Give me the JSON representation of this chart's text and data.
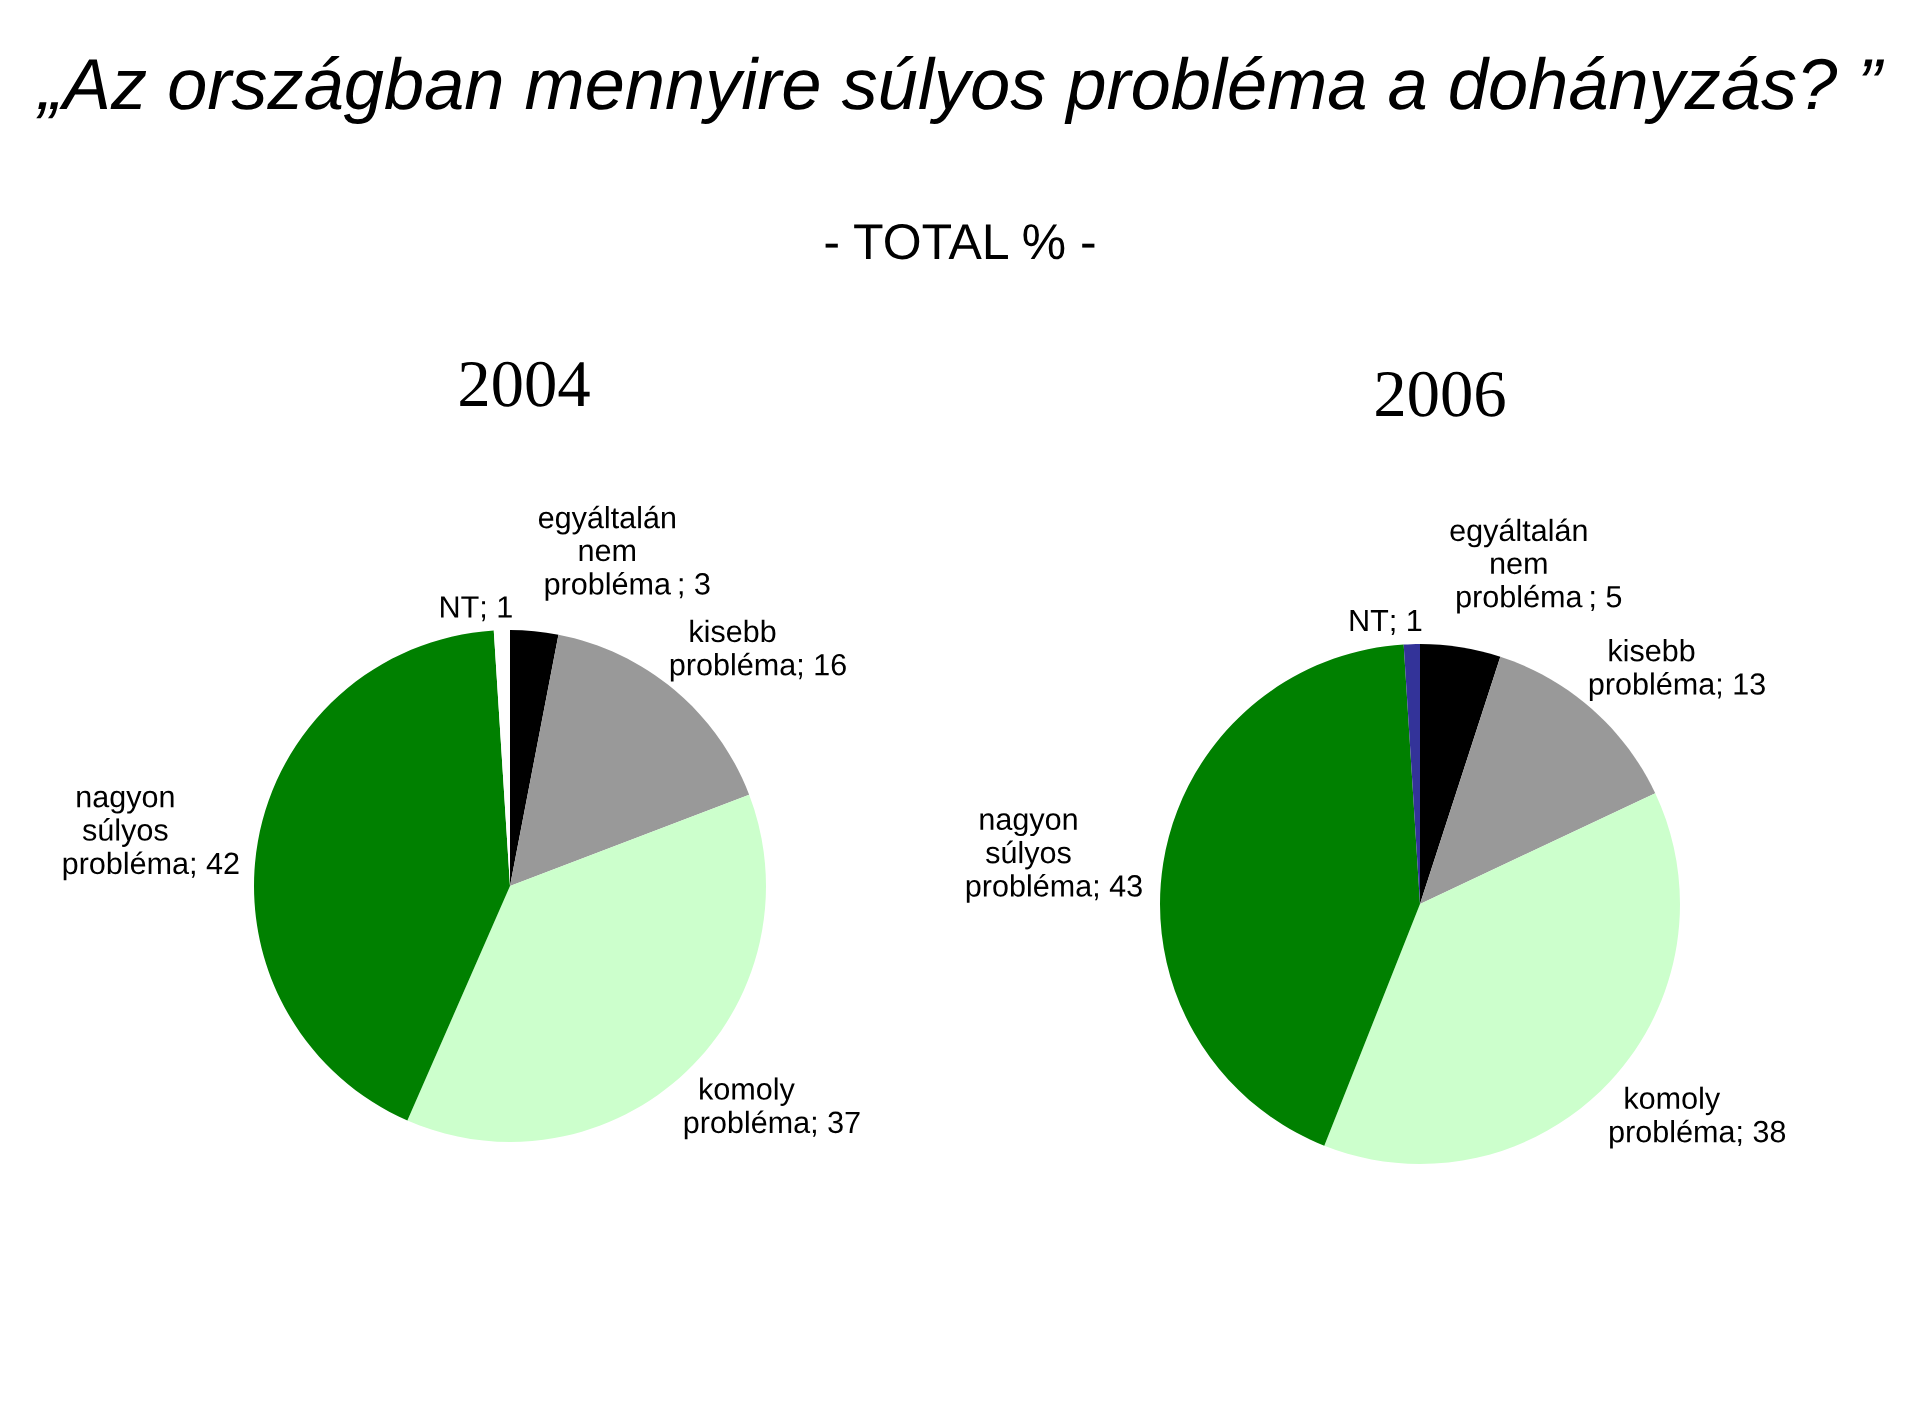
{
  "chart_data": [
    {
      "type": "pie",
      "title": "2004",
      "annotations": [
        "„Az országban mennyire súlyos probléma a dohányzás? ”",
        "- TOTAL % -"
      ],
      "categories": [
        "egyáltalán nem probléma",
        "kisebb probléma",
        "komoly probléma",
        "nagyon súlyos probléma",
        "NT"
      ],
      "values": [
        3,
        16,
        37,
        42,
        1
      ],
      "value_labels": [
        "; 3",
        "; 16",
        "; 37",
        "; 42",
        "; 1"
      ],
      "colors": [
        "#000000",
        "#999999",
        "#ccffcc",
        "#008000",
        "#ffffff"
      ]
    },
    {
      "type": "pie",
      "title": "2006",
      "categories": [
        "egyáltalán nem probléma",
        "kisebb probléma",
        "komoly probléma",
        "nagyon súlyos probléma",
        "NT"
      ],
      "values": [
        5,
        13,
        38,
        43,
        1
      ],
      "value_labels": [
        "; 5",
        "; 13",
        "; 38",
        "; 43",
        "; 1"
      ],
      "colors": [
        "#000000",
        "#999999",
        "#ccffcc",
        "#008000",
        "#333399"
      ]
    }
  ]
}
